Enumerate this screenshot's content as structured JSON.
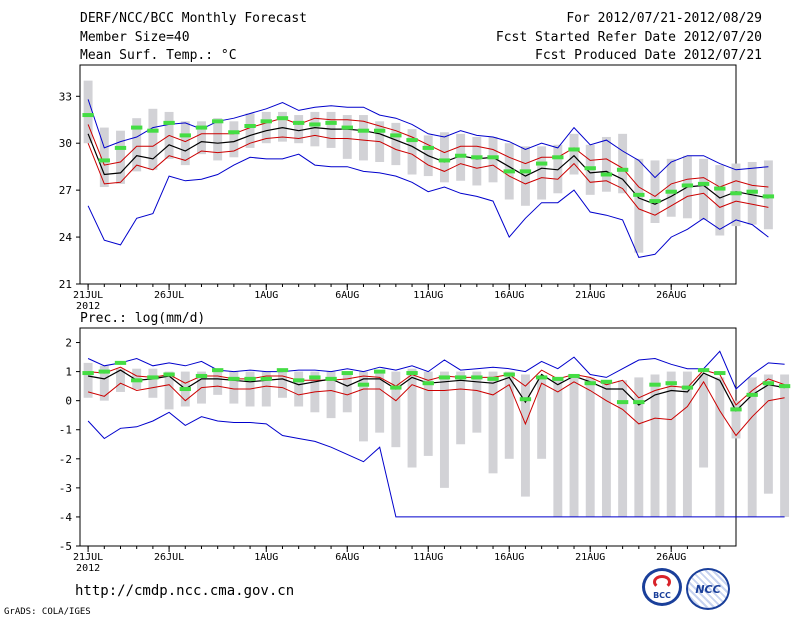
{
  "header": {
    "title": "DERF/NCC/BCC Monthly Forecast",
    "member_size": "Member Size=40",
    "variable": "Mean Surf. Temp.: °C",
    "period": "For 2012/07/21-2012/08/29",
    "started": "Fcst Started Refer Date 2012/07/20",
    "produced": "Fcst Produced Date 2012/07/21"
  },
  "footer": {
    "url": "http://cmdp.ncc.cma.gov.cn",
    "credit": "GrADS: COLA/IGES",
    "logo_bcc": "BCC",
    "logo_ncc": "NCC"
  },
  "colors": {
    "observed": "#44dd44",
    "range_box": "#d2d2d6",
    "envelope": "#0000cc",
    "quartile": "#cc0000",
    "mean": "#000000"
  },
  "chart_data": [
    {
      "type": "line",
      "title": "Mean Surf. Temp.: °C",
      "xlabel": "",
      "ylabel": "",
      "x_start_day": 21,
      "x_ticks": [
        {
          "day": 21,
          "label": "21JUL"
        },
        {
          "day": 26,
          "label": "26JUL"
        },
        {
          "day": 32,
          "label": "1AUG"
        },
        {
          "day": 37,
          "label": "6AUG"
        },
        {
          "day": 42,
          "label": "11AUG"
        },
        {
          "day": 47,
          "label": "16AUG"
        },
        {
          "day": 52,
          "label": "21AUG"
        },
        {
          "day": 57,
          "label": "26AUG"
        }
      ],
      "year_label": "2012",
      "ylim": [
        21,
        35
      ],
      "y_ticks": [
        21,
        24,
        27,
        30,
        33
      ],
      "series": [
        {
          "name": "max",
          "values": [
            32.8,
            29.7,
            30.1,
            30.4,
            31.0,
            31.2,
            31.3,
            30.9,
            31.4,
            31.6,
            31.9,
            32.2,
            32.6,
            32.1,
            32.3,
            32.4,
            32.3,
            32.3,
            31.8,
            31.6,
            31.2,
            30.6,
            30.4,
            30.8,
            30.5,
            30.4,
            30.1,
            29.6,
            30.0,
            29.7,
            31.0,
            29.9,
            30.2,
            29.5,
            28.9,
            27.8,
            28.8,
            29.2,
            29.2,
            28.7,
            28.3,
            28.4,
            28.5
          ]
        },
        {
          "name": "q75",
          "values": [
            31.2,
            28.6,
            28.8,
            29.8,
            29.8,
            30.5,
            30.1,
            30.6,
            30.6,
            30.6,
            31.0,
            31.3,
            31.6,
            31.2,
            31.6,
            31.5,
            31.5,
            31.4,
            31.1,
            30.8,
            30.4,
            29.9,
            29.4,
            29.8,
            29.8,
            29.6,
            29.1,
            28.7,
            29.1,
            29.1,
            29.7,
            28.9,
            29.0,
            28.4,
            27.2,
            26.6,
            27.4,
            27.7,
            27.8,
            27.2,
            27.6,
            27.3,
            27.2
          ]
        },
        {
          "name": "mean",
          "values": [
            30.6,
            28.0,
            28.1,
            29.2,
            29.0,
            29.9,
            29.5,
            30.1,
            30.0,
            30.1,
            30.5,
            30.8,
            31.0,
            30.8,
            31.0,
            30.9,
            30.9,
            30.8,
            30.6,
            30.2,
            29.8,
            29.2,
            28.8,
            29.2,
            29.0,
            29.1,
            28.5,
            27.9,
            28.4,
            28.3,
            29.2,
            28.1,
            28.2,
            27.7,
            26.5,
            26.1,
            26.6,
            27.2,
            27.3,
            26.5,
            26.9,
            26.7,
            26.5
          ]
        },
        {
          "name": "q25",
          "values": [
            30.0,
            27.4,
            27.5,
            28.6,
            28.3,
            29.2,
            28.9,
            29.5,
            29.4,
            29.5,
            30.0,
            30.3,
            30.4,
            30.3,
            30.5,
            30.3,
            30.3,
            30.2,
            30.1,
            29.6,
            29.3,
            28.6,
            28.2,
            28.7,
            28.4,
            28.6,
            27.9,
            27.4,
            27.8,
            27.7,
            28.7,
            27.5,
            27.6,
            27.1,
            25.8,
            25.4,
            26.0,
            26.6,
            26.8,
            25.9,
            26.3,
            26.1,
            25.9
          ]
        },
        {
          "name": "min",
          "values": [
            26.0,
            23.8,
            23.5,
            25.2,
            25.5,
            27.9,
            27.6,
            27.7,
            28.0,
            28.6,
            29.1,
            29.0,
            29.0,
            29.3,
            28.6,
            28.5,
            28.5,
            28.2,
            28.1,
            27.9,
            27.5,
            26.9,
            27.2,
            26.8,
            26.6,
            26.3,
            24.0,
            25.2,
            26.2,
            26.2,
            27.0,
            25.6,
            25.4,
            25.1,
            22.7,
            22.9,
            24.0,
            24.5,
            25.2,
            24.5,
            25.1,
            24.8,
            24.0
          ]
        },
        {
          "name": "range_hi",
          "values": [
            34.0,
            31.0,
            30.8,
            31.6,
            32.2,
            32.0,
            31.4,
            31.4,
            31.6,
            31.4,
            31.9,
            32.0,
            32.0,
            31.8,
            32.0,
            32.0,
            31.8,
            31.8,
            31.4,
            31.3,
            30.9,
            30.5,
            30.7,
            30.6,
            30.4,
            30.4,
            30.0,
            29.8,
            29.8,
            29.9,
            30.6,
            29.9,
            30.4,
            30.6,
            29.0,
            28.9,
            29.0,
            29.2,
            29.0,
            28.6,
            28.7,
            28.8,
            28.9
          ]
        },
        {
          "name": "range_lo",
          "values": [
            30.0,
            27.2,
            27.4,
            28.2,
            28.3,
            29.0,
            28.6,
            29.3,
            28.9,
            29.1,
            29.7,
            30.0,
            30.1,
            30.0,
            29.8,
            29.7,
            29.0,
            28.9,
            28.8,
            28.6,
            28.0,
            27.9,
            27.5,
            27.6,
            27.3,
            27.5,
            26.4,
            26.0,
            26.4,
            26.8,
            28.0,
            26.7,
            26.9,
            26.8,
            23.0,
            24.9,
            25.3,
            25.2,
            25.1,
            24.1,
            24.7,
            24.8,
            24.5
          ]
        },
        {
          "name": "observed",
          "values": [
            31.8,
            28.9,
            29.7,
            31.0,
            30.8,
            31.3,
            30.5,
            31.0,
            31.4,
            30.7,
            31.1,
            31.4,
            31.6,
            31.3,
            31.2,
            31.3,
            31.0,
            30.8,
            30.8,
            30.5,
            30.2,
            29.7,
            28.9,
            29.2,
            29.1,
            29.1,
            28.2,
            28.2,
            28.7,
            29.1,
            29.6,
            28.4,
            28.0,
            28.3,
            26.7,
            26.3,
            26.9,
            27.3,
            27.4,
            27.1,
            26.8,
            26.9,
            26.6
          ]
        }
      ]
    },
    {
      "type": "line",
      "title": "Prec.: log(mm/d)",
      "xlabel": "",
      "ylabel": "",
      "x_start_day": 21,
      "x_ticks": [
        {
          "day": 21,
          "label": "21JUL"
        },
        {
          "day": 26,
          "label": "26JUL"
        },
        {
          "day": 32,
          "label": "1AUG"
        },
        {
          "day": 37,
          "label": "6AUG"
        },
        {
          "day": 42,
          "label": "11AUG"
        },
        {
          "day": 47,
          "label": "16AUG"
        },
        {
          "day": 52,
          "label": "21AUG"
        },
        {
          "day": 57,
          "label": "26AUG"
        }
      ],
      "year_label": "2012",
      "ylim": [
        -5,
        2.5
      ],
      "y_ticks": [
        -5,
        -4,
        -3,
        -2,
        -1,
        0,
        1,
        2
      ],
      "series": [
        {
          "name": "max",
          "values": [
            1.45,
            1.2,
            1.3,
            1.45,
            1.2,
            1.3,
            1.2,
            1.35,
            1.05,
            1.0,
            1.05,
            1.0,
            1.0,
            1.05,
            1.05,
            1.0,
            1.1,
            1.0,
            1.15,
            1.05,
            1.2,
            1.0,
            1.4,
            1.05,
            1.1,
            1.15,
            1.1,
            1.0,
            1.35,
            1.1,
            1.5,
            0.9,
            0.8,
            1.1,
            1.4,
            1.45,
            1.25,
            1.1,
            1.1,
            1.7,
            0.4,
            0.9,
            1.3,
            1.25
          ]
        },
        {
          "name": "q75",
          "values": [
            1.0,
            0.95,
            1.15,
            0.85,
            0.8,
            0.9,
            0.6,
            0.85,
            0.85,
            0.75,
            0.75,
            0.85,
            0.85,
            0.7,
            0.7,
            0.7,
            0.75,
            0.85,
            0.8,
            0.5,
            0.9,
            0.7,
            0.85,
            0.8,
            0.8,
            0.8,
            0.9,
            0.5,
            1.05,
            0.75,
            0.9,
            0.8,
            0.55,
            0.7,
            0.1,
            0.35,
            0.5,
            0.45,
            1.05,
            0.9,
            -0.15,
            0.35,
            0.75,
            0.55
          ]
        },
        {
          "name": "mean",
          "values": [
            0.85,
            0.75,
            1.05,
            0.7,
            0.75,
            0.85,
            0.4,
            0.75,
            0.75,
            0.7,
            0.65,
            0.7,
            0.75,
            0.55,
            0.65,
            0.75,
            0.5,
            0.75,
            0.75,
            0.4,
            0.8,
            0.6,
            0.65,
            0.7,
            0.65,
            0.6,
            0.8,
            -0.05,
            0.9,
            0.55,
            0.85,
            0.65,
            0.4,
            0.4,
            -0.15,
            0.2,
            0.35,
            0.3,
            0.95,
            0.7,
            -0.35,
            0.2,
            0.55,
            0.45
          ]
        },
        {
          "name": "q25",
          "values": [
            0.3,
            0.15,
            0.6,
            0.35,
            0.45,
            0.55,
            0.0,
            0.45,
            0.5,
            0.4,
            0.4,
            0.5,
            0.45,
            0.2,
            0.3,
            0.35,
            0.2,
            0.4,
            0.4,
            0.0,
            0.55,
            0.35,
            0.35,
            0.4,
            0.35,
            0.2,
            0.55,
            -0.8,
            0.6,
            0.3,
            0.65,
            0.35,
            0.0,
            -0.3,
            -0.8,
            -0.6,
            -0.65,
            -0.2,
            0.65,
            -0.35,
            -1.2,
            -0.55,
            0.0,
            0.1
          ]
        },
        {
          "name": "min",
          "values": [
            -0.7,
            -1.3,
            -0.95,
            -0.9,
            -0.7,
            -0.4,
            -0.85,
            -0.55,
            -0.7,
            -0.75,
            -0.75,
            -0.8,
            -1.2,
            -1.3,
            -1.4,
            -1.6,
            -1.85,
            -2.1,
            -1.6,
            -4.0,
            -4.0,
            -4.0,
            -4.0,
            -4.0,
            -4.0,
            -4.0,
            -4.0,
            -4.0,
            -4.0,
            -4.0,
            -4.0,
            -4.0,
            -4.0,
            -4.0,
            -4.0,
            -4.0,
            -4.0,
            -4.0,
            -4.0,
            -4.0,
            -4.0,
            -4.0,
            -4.0,
            -4.0
          ]
        },
        {
          "name": "range_hi",
          "values": [
            1.3,
            1.2,
            1.1,
            1.1,
            1.1,
            1.0,
            1.0,
            1.0,
            1.1,
            1.0,
            1.0,
            1.0,
            1.0,
            1.0,
            1.0,
            1.0,
            1.0,
            1.0,
            1.0,
            1.0,
            1.1,
            1.0,
            1.0,
            1.0,
            1.0,
            1.0,
            1.0,
            0.9,
            0.8,
            0.8,
            0.9,
            0.8,
            0.7,
            0.7,
            0.8,
            0.9,
            1.0,
            1.0,
            0.9,
            0.8,
            0.0,
            0.8,
            0.9,
            0.9
          ]
        },
        {
          "name": "range_lo",
          "values": [
            0.1,
            0.0,
            0.3,
            0.4,
            0.1,
            -0.3,
            -0.2,
            -0.1,
            0.2,
            -0.1,
            -0.2,
            -0.2,
            0.1,
            -0.2,
            -0.4,
            -0.6,
            -0.4,
            -1.4,
            -1.1,
            -1.6,
            -2.3,
            -1.9,
            -3.0,
            -1.5,
            -1.1,
            -2.5,
            -2.0,
            -3.3,
            -2.0,
            -4.0,
            -4.0,
            -4.0,
            -4.0,
            -4.0,
            -4.0,
            -4.0,
            -4.0,
            -4.0,
            -2.3,
            -4.0,
            -1.3,
            -4.0,
            -3.2,
            -4.0
          ]
        },
        {
          "name": "observed",
          "values": [
            0.95,
            1.0,
            1.3,
            0.7,
            0.8,
            0.9,
            0.4,
            0.85,
            1.05,
            0.75,
            0.75,
            0.75,
            1.05,
            0.7,
            0.8,
            0.75,
            0.95,
            0.55,
            1.0,
            0.45,
            0.95,
            0.6,
            0.8,
            0.8,
            0.8,
            0.75,
            0.9,
            0.05,
            0.8,
            0.75,
            0.85,
            0.6,
            0.65,
            -0.05,
            -0.05,
            0.55,
            0.6,
            0.45,
            1.05,
            0.95,
            -0.3,
            0.2,
            0.6,
            0.5
          ]
        }
      ]
    }
  ]
}
